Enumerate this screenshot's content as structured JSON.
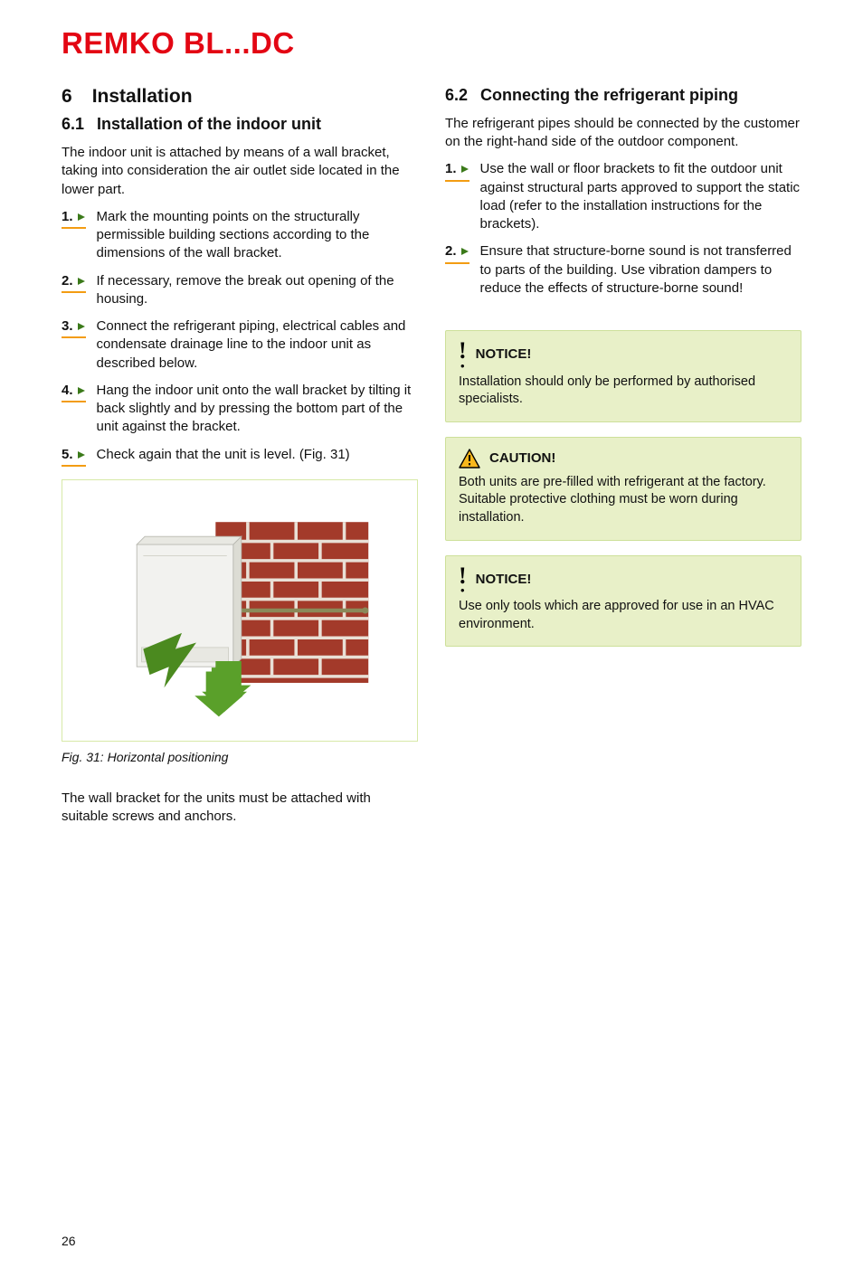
{
  "brand": "REMKO BL...DC",
  "pageNumber": "26",
  "section": {
    "number": "6",
    "title": "Installation"
  },
  "col1": {
    "sub": {
      "number": "6.1",
      "title": "Installation of the indoor unit"
    },
    "intro": "The indoor unit is attached by means of a wall bracket, taking into consideration the air outlet side located in the lower part.",
    "steps": [
      "Mark the mounting points on the structurally permissible building sections according to the dimensions of the wall bracket.",
      "If necessary, remove the break out opening of the housing.",
      "Connect the refrigerant piping, electrical cables and condensate drainage line to the indoor unit as described below.",
      "Hang the indoor unit onto the wall bracket by tilting it back slightly and by pressing the bottom part of the unit against the bracket.",
      "Check again that the unit is level. (Fig. 31)"
    ],
    "figCaption": "Fig. 31: Horizontal positioning",
    "after": "The wall bracket for the units must be attached with suitable screws and anchors."
  },
  "col2": {
    "sub": {
      "number": "6.2",
      "title": "Connecting the refrigerant piping"
    },
    "intro": "The refrigerant pipes should be connected by the customer on the right-hand side of the outdoor component.",
    "steps": [
      "Use the wall or floor brackets to fit the outdoor unit against structural parts approved to support the static load (refer to the installation instructions for the brackets).",
      "Ensure that structure-borne sound is not transferred to parts of the building. Use vibration dampers to reduce the effects of structure-borne sound!"
    ],
    "callouts": [
      {
        "icon": "notice",
        "head": "NOTICE!",
        "body": "Installation should only be performed by authorised specialists."
      },
      {
        "icon": "caution",
        "head": "CAUTION!",
        "body": "Both units are pre-filled with refrigerant at the factory. Suitable protective clothing must be worn during installation."
      },
      {
        "icon": "notice",
        "head": "NOTICE!",
        "body": "Use only tools which are approved for use in an HVAC environment."
      }
    ]
  },
  "colors": {
    "brand": "#e30613",
    "calloutBg": "#e8f0c8",
    "calloutBorder": "#cde09a",
    "stepUnderline": "#f39c12",
    "arrowTriangle": "#3b7a1a",
    "cautionFill": "#f8b81c"
  }
}
